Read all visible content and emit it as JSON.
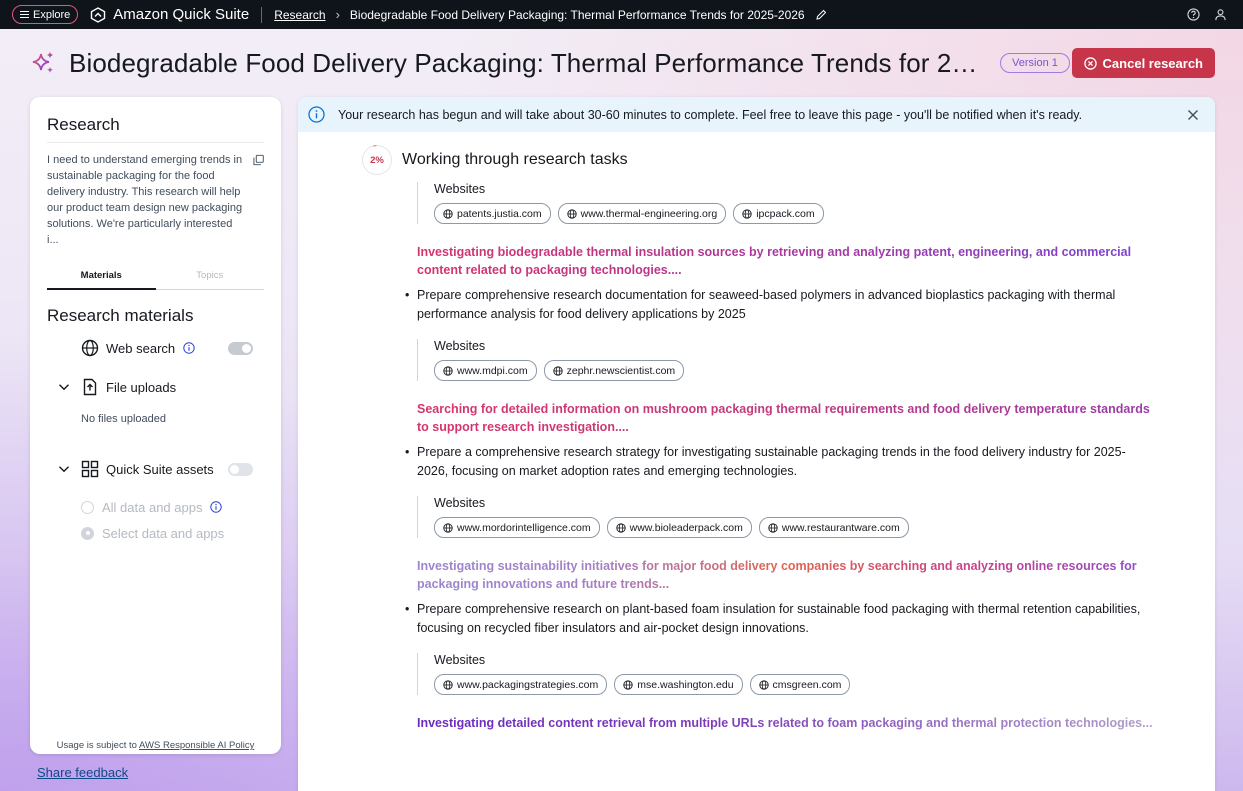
{
  "topbar": {
    "explore_label": "Explore",
    "brand_name": "Amazon Quick Suite",
    "breadcrumb_link": "Research",
    "breadcrumb_current": "Biodegradable Food Delivery Packaging: Thermal Performance Trends for 2025-2026",
    "help_icon": "help-circle-icon",
    "user_icon": "user-icon"
  },
  "header": {
    "title": "Biodegradable Food Delivery Packaging: Thermal Performance Trends for 2025-2026",
    "version_label": "Version 1",
    "cancel_label": "Cancel research",
    "accent": "#c7354a"
  },
  "left_panel": {
    "title": "Research",
    "description": "I need to understand emerging trends in sustainable packaging for the food delivery industry. This research will help our product team design new packaging solutions. We're particularly interested i...",
    "tabs": [
      {
        "label": "Materials",
        "active": true
      },
      {
        "label": "Topics",
        "active": false
      }
    ],
    "materials_title": "Research materials",
    "web_search_label": "Web search",
    "web_search_on": true,
    "file_uploads_label": "File uploads",
    "no_files_label": "No files uploaded",
    "assets_label": "Quick Suite assets",
    "assets_on": false,
    "radio_all": "All data and apps",
    "radio_select": "Select data and apps",
    "usage_prefix": "Usage is subject to ",
    "usage_link": "AWS Responsible AI Policy"
  },
  "share_feedback": "Share feedback",
  "main": {
    "banner_text": "Your research has begun and will take about 30-60 minutes to complete. Feel free to leave this page - you'll be notified when it's ready.",
    "progress_percent": "2%",
    "progress_title": "Working through research tasks",
    "websites_label": "Websites",
    "blocks": [
      {
        "sites": [
          "patents.justia.com",
          "www.thermal-engineering.org",
          "ipcpack.com"
        ],
        "status": "Investigating biodegradable thermal insulation sources by retrieving and analyzing patent, engineering, and commercial content related to packaging technologies...."
      },
      {
        "task": "Prepare comprehensive research documentation for seaweed-based polymers in advanced bioplastics packaging with thermal performance analysis for food delivery applications by 2025",
        "sites": [
          "www.mdpi.com",
          "zephr.newscientist.com"
        ],
        "status": "Searching for detailed information on mushroom packaging thermal requirements and food delivery temperature standards to support research investigation...."
      },
      {
        "task": "Prepare a comprehensive research strategy for investigating sustainable packaging trends in the food delivery industry for 2025-2026, focusing on market adoption rates and emerging technologies.",
        "sites": [
          "www.mordorintelligence.com",
          "www.bioleaderpack.com",
          "www.restaurantware.com"
        ],
        "status": "Investigating sustainability initiatives for major food delivery companies by searching and analyzing online resources for packaging innovations and future trends..."
      },
      {
        "task": "Prepare comprehensive research on plant-based foam insulation for sustainable food packaging with thermal retention capabilities, focusing on recycled fiber insulators and air-pocket design innovations.",
        "sites": [
          "www.packagingstrategies.com",
          "mse.washington.edu",
          "cmsgreen.com"
        ],
        "status": "Investigating detailed content retrieval from multiple URLs related to foam packaging and thermal protection technologies..."
      }
    ]
  }
}
